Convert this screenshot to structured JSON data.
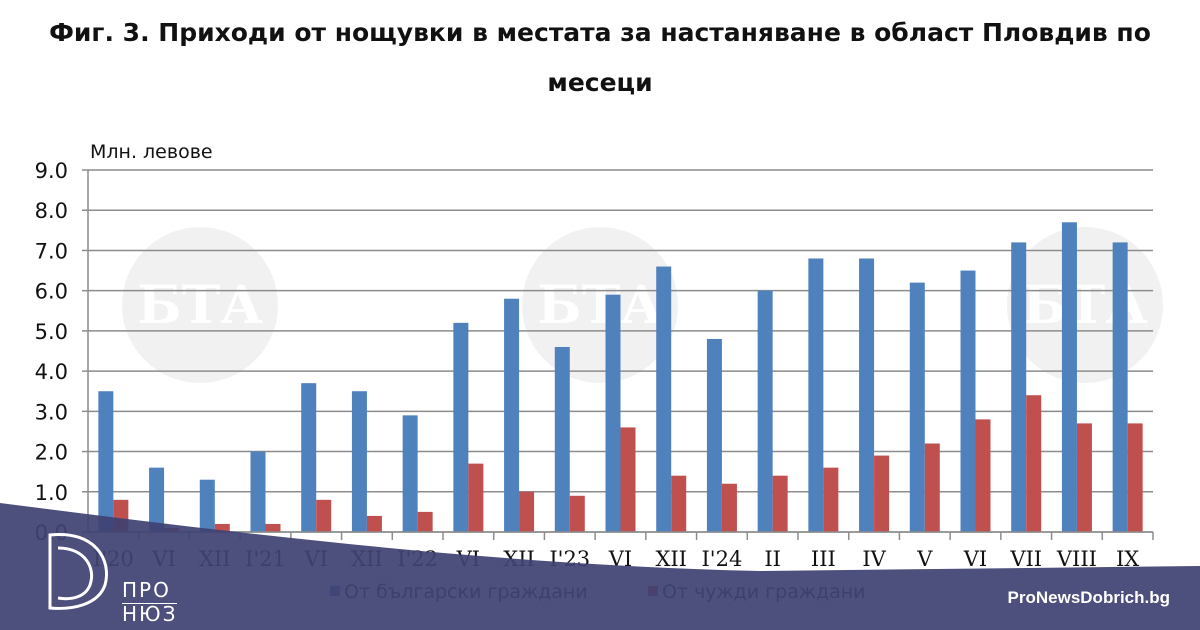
{
  "chart_data": {
    "type": "bar",
    "title": "Фиг. 3. Приходи от нощувки в местата за настаняване в област Пловдив по месеци",
    "ylabel": "Млн. левове",
    "xlabel": "",
    "ylim": [
      0,
      9
    ],
    "yticks": [
      "0.0",
      "1.0",
      "2.0",
      "3.0",
      "4.0",
      "5.0",
      "6.0",
      "7.0",
      "8.0",
      "9.0"
    ],
    "grid": true,
    "legend_placement": "bottom",
    "categories": [
      "I'20",
      "VI",
      "XII",
      "I'21",
      "VI",
      "XII",
      "I'22",
      "VI",
      "XII",
      "I'23",
      "VI",
      "XII",
      "I'24",
      "II",
      "III",
      "IV",
      "V",
      "VI",
      "VII",
      "VIII",
      "IX"
    ],
    "series": [
      {
        "name": "От български граждани",
        "color": "#4f81bd",
        "values": [
          3.5,
          1.6,
          1.3,
          2.0,
          3.7,
          3.5,
          2.9,
          5.2,
          5.8,
          4.6,
          5.9,
          6.6,
          4.8,
          6.0,
          6.8,
          6.8,
          6.2,
          6.5,
          7.2,
          7.7,
          7.2
        ]
      },
      {
        "name": "От чужди граждани",
        "color": "#c0504d",
        "values": [
          0.8,
          0.1,
          0.2,
          0.2,
          0.8,
          0.4,
          0.5,
          1.7,
          1.0,
          0.9,
          2.6,
          1.4,
          1.2,
          1.4,
          1.6,
          1.9,
          2.2,
          2.8,
          3.4,
          2.7,
          2.7
        ]
      }
    ]
  },
  "branding": {
    "logo_line1": "ПРО",
    "logo_line2": "НЮЗ",
    "site": "ProNewsDobrich.bg",
    "watermark": "БТА",
    "banner_color": "#3f4272"
  }
}
